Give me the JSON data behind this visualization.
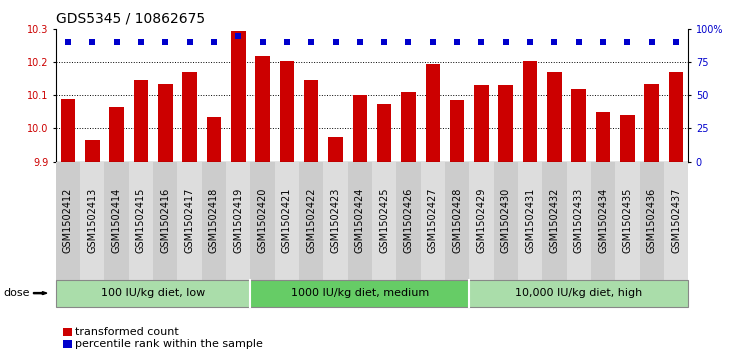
{
  "title": "GDS5345 / 10862675",
  "samples": [
    "GSM1502412",
    "GSM1502413",
    "GSM1502414",
    "GSM1502415",
    "GSM1502416",
    "GSM1502417",
    "GSM1502418",
    "GSM1502419",
    "GSM1502420",
    "GSM1502421",
    "GSM1502422",
    "GSM1502423",
    "GSM1502424",
    "GSM1502425",
    "GSM1502426",
    "GSM1502427",
    "GSM1502428",
    "GSM1502429",
    "GSM1502430",
    "GSM1502431",
    "GSM1502432",
    "GSM1502433",
    "GSM1502434",
    "GSM1502435",
    "GSM1502436",
    "GSM1502437"
  ],
  "bar_values": [
    10.09,
    9.965,
    10.065,
    10.145,
    10.135,
    10.17,
    10.035,
    10.295,
    10.22,
    10.205,
    10.145,
    9.975,
    10.1,
    10.075,
    10.11,
    10.195,
    10.085,
    10.13,
    10.13,
    10.205,
    10.17,
    10.12,
    10.05,
    10.04,
    10.135,
    10.17
  ],
  "percentile_values": [
    90,
    90,
    90,
    90,
    90,
    90,
    90,
    95,
    90,
    90,
    90,
    90,
    90,
    90,
    90,
    90,
    90,
    90,
    90,
    90,
    90,
    90,
    90,
    90,
    90,
    90
  ],
  "bar_color": "#cc0000",
  "percentile_color": "#0000cc",
  "ylim_left": [
    9.9,
    10.3
  ],
  "ylim_right": [
    0,
    100
  ],
  "yticks_left": [
    9.9,
    10.0,
    10.1,
    10.2,
    10.3
  ],
  "yticks_right": [
    0,
    25,
    50,
    75,
    100
  ],
  "ytick_labels_right": [
    "0",
    "25",
    "50",
    "75",
    "100%"
  ],
  "gridlines": [
    10.0,
    10.1,
    10.2
  ],
  "groups": [
    {
      "label": "100 IU/kg diet, low",
      "start": 0,
      "end": 8,
      "color": "#aaddaa"
    },
    {
      "label": "1000 IU/kg diet, medium",
      "start": 8,
      "end": 17,
      "color": "#66cc66"
    },
    {
      "label": "10,000 IU/kg diet, high",
      "start": 17,
      "end": 26,
      "color": "#aaddaa"
    }
  ],
  "dose_label": "dose",
  "legend_items": [
    {
      "color": "#cc0000",
      "label": "transformed count"
    },
    {
      "color": "#0000cc",
      "label": "percentile rank within the sample"
    }
  ],
  "bar_width": 0.6,
  "title_fontsize": 10,
  "tick_fontsize": 7
}
